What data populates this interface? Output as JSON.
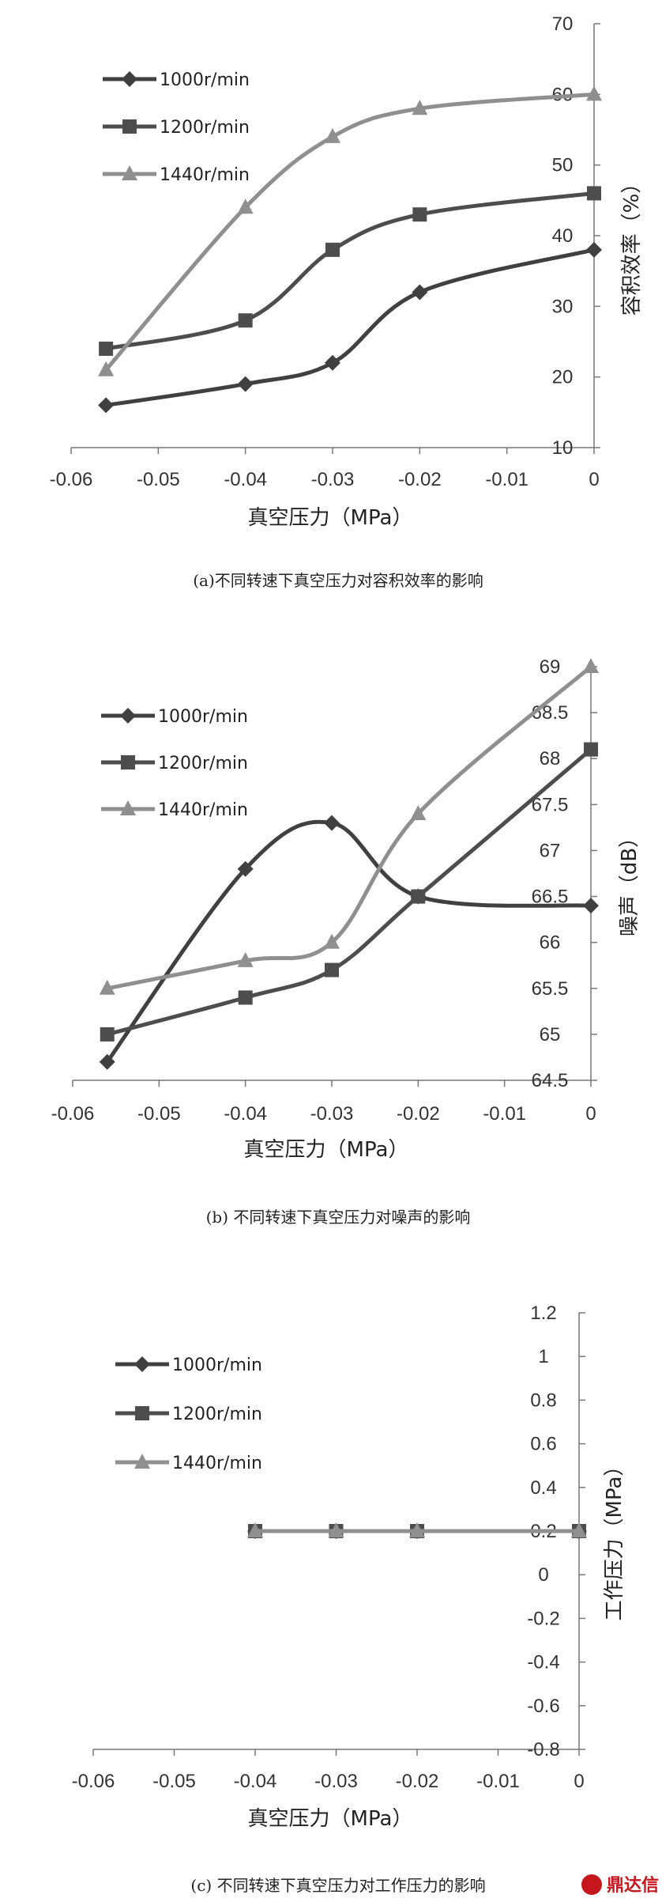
{
  "chart_data": [
    {
      "type": "line",
      "caption": "(a)不同转速下真空压力对容积效率的影响",
      "xlabel": "真空压力（MPa）",
      "ylabel": "容积效率（%）",
      "x_ticks": [
        "-0.06",
        "-0.05",
        "-0.04",
        "-0.03",
        "-0.02",
        "-0.01",
        "0"
      ],
      "y_ticks": [
        "10",
        "20",
        "30",
        "40",
        "50",
        "60",
        "70"
      ],
      "xlim": [
        -0.06,
        0
      ],
      "ylim": [
        10,
        70
      ],
      "x": [
        -0.056,
        -0.04,
        -0.03,
        -0.02,
        0
      ],
      "series": [
        {
          "name": "1000r/min",
          "marker": "diamond",
          "color": "#404040",
          "values": [
            16,
            19,
            22,
            32,
            38
          ]
        },
        {
          "name": "1200r/min",
          "marker": "square",
          "color": "#4d4d4d",
          "values": [
            24,
            28,
            38,
            43,
            46
          ]
        },
        {
          "name": "1440r/min",
          "marker": "triangle",
          "color": "#8f8f8f",
          "values": [
            21,
            44,
            54,
            58,
            60
          ]
        }
      ]
    },
    {
      "type": "line",
      "caption": "(b) 不同转速下真空压力对噪声的影响",
      "xlabel": "真空压力（MPa）",
      "ylabel": "噪声（dB）",
      "x_ticks": [
        "-0.06",
        "-0.05",
        "-0.04",
        "-0.03",
        "-0.02",
        "-0.01",
        "0"
      ],
      "y_ticks": [
        "64.5",
        "65",
        "65.5",
        "66",
        "66.5",
        "67",
        "67.5",
        "68",
        "68.5",
        "69"
      ],
      "xlim": [
        -0.06,
        0
      ],
      "ylim": [
        64.5,
        69
      ],
      "x": [
        -0.056,
        -0.04,
        -0.03,
        -0.02,
        0
      ],
      "series": [
        {
          "name": "1000r/min",
          "marker": "diamond",
          "color": "#404040",
          "values": [
            64.7,
            66.8,
            67.3,
            66.5,
            66.4
          ]
        },
        {
          "name": "1200r/min",
          "marker": "square",
          "color": "#4d4d4d",
          "values": [
            65.0,
            65.4,
            65.7,
            66.5,
            68.1
          ]
        },
        {
          "name": "1440r/min",
          "marker": "triangle",
          "color": "#8f8f8f",
          "values": [
            65.5,
            65.8,
            66.0,
            67.4,
            69.0
          ]
        }
      ]
    },
    {
      "type": "line",
      "caption": "(c) 不同转速下真空压力对工作压力的影响",
      "xlabel": "真空压力（MPa）",
      "ylabel": "工作压力（MPa）",
      "x_ticks": [
        "-0.06",
        "-0.05",
        "-0.04",
        "-0.03",
        "-0.02",
        "-0.01",
        "0"
      ],
      "y_ticks": [
        "-0.8",
        "-0.6",
        "-0.4",
        "-0.2",
        "0",
        "0.2",
        "0.4",
        "0.6",
        "0.8",
        "1",
        "1.2"
      ],
      "xlim": [
        -0.06,
        0
      ],
      "ylim": [
        -0.8,
        1.2
      ],
      "x": [
        -0.04,
        -0.03,
        -0.02,
        0
      ],
      "series": [
        {
          "name": "1000r/min",
          "marker": "diamond",
          "color": "#404040",
          "values": [
            0.2,
            0.2,
            0.2,
            0.2
          ]
        },
        {
          "name": "1200r/min",
          "marker": "square",
          "color": "#4d4d4d",
          "values": [
            0.2,
            0.2,
            0.2,
            0.2
          ]
        },
        {
          "name": "1440r/min",
          "marker": "triangle",
          "color": "#8f8f8f",
          "values": [
            0.2,
            0.2,
            0.2,
            0.2
          ]
        }
      ]
    }
  ],
  "watermark": {
    "text": "鼎达信"
  }
}
